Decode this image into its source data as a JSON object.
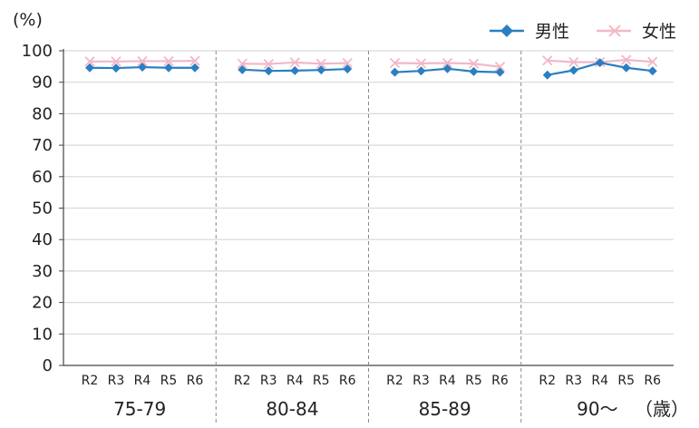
{
  "chart_data": {
    "type": "line",
    "ylabel": "(%)",
    "unit_label": "（歳）",
    "ylim": [
      0,
      100
    ],
    "yticks": [
      0,
      10,
      20,
      30,
      40,
      50,
      60,
      70,
      80,
      90,
      100
    ],
    "grid": true,
    "legend_position": "top-right",
    "groups": [
      {
        "label": "75-79",
        "categories": [
          "R2",
          "R3",
          "R4",
          "R5",
          "R6"
        ]
      },
      {
        "label": "80-84",
        "categories": [
          "R2",
          "R3",
          "R4",
          "R5",
          "R6"
        ]
      },
      {
        "label": "85-89",
        "categories": [
          "R2",
          "R3",
          "R4",
          "R5",
          "R6"
        ]
      },
      {
        "label": "90〜",
        "categories": [
          "R2",
          "R3",
          "R4",
          "R5",
          "R6"
        ]
      }
    ],
    "series": [
      {
        "name": "男性",
        "color": "#2a7fc2",
        "marker": "diamond",
        "values": [
          [
            94.6,
            94.5,
            94.8,
            94.6,
            94.6
          ],
          [
            94.0,
            93.6,
            93.7,
            93.9,
            94.2
          ],
          [
            93.2,
            93.6,
            94.3,
            93.4,
            93.2
          ],
          [
            92.3,
            93.8,
            96.2,
            94.6,
            93.6
          ]
        ]
      },
      {
        "name": "女性",
        "color": "#f2b8c6",
        "marker": "x",
        "values": [
          [
            96.6,
            96.6,
            96.7,
            96.7,
            96.8
          ],
          [
            95.9,
            95.8,
            96.3,
            95.9,
            96.1
          ],
          [
            96.1,
            96.0,
            96.1,
            95.9,
            94.9
          ],
          [
            96.9,
            96.4,
            96.4,
            97.1,
            96.5
          ]
        ]
      }
    ]
  }
}
